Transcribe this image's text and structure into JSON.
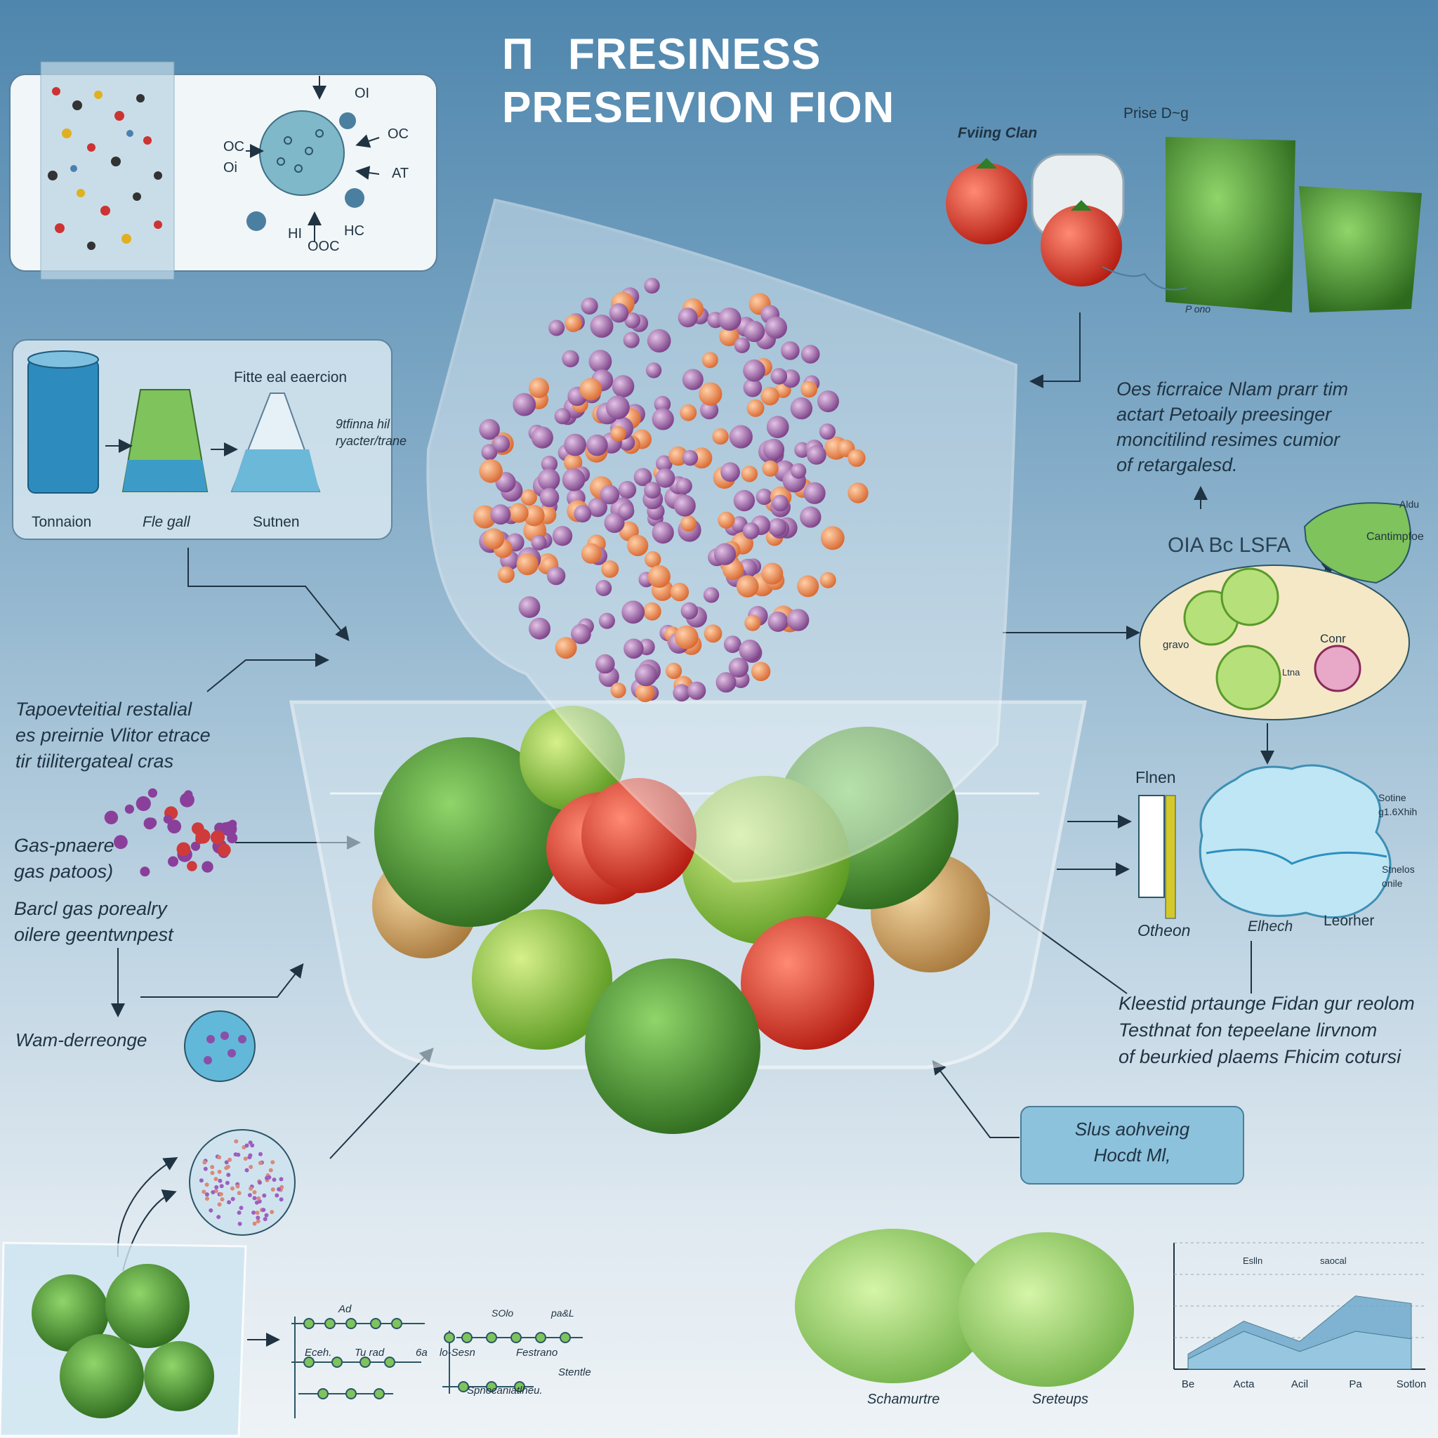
{
  "title": {
    "prefix": "Π",
    "line1": "FRESINESS",
    "line2": "PRESEIVION FION"
  },
  "membrane_panel": {
    "labels": [
      "OI",
      "OC",
      "OC",
      "Oi",
      "AT",
      "HI",
      "HC",
      "OOC"
    ]
  },
  "beaker_panel": {
    "heading": "Fitte eal eaercion",
    "note_lines": [
      "9tfinna hil",
      "ryacter/trane"
    ],
    "labels": [
      "Tonnaion",
      "Fle gall",
      "Sutnen"
    ]
  },
  "top_right": {
    "label_left": "Fviing Clan",
    "label_top": "Prise D~g",
    "label_small": "P ono"
  },
  "right_paragraph_1": [
    "Oes ficrraice Nlam prarr tim",
    "actart Petoaily preesinger",
    "moncitilind resimes cumior",
    "of retargalesd."
  ],
  "right_mid": {
    "code": "OIA Bc LSFA",
    "badge_top": "Aldu",
    "badge_text": "Cantimpfoe",
    "oval_left": "gravo",
    "oval_right": "Conr",
    "oval_small": "Ltna"
  },
  "right_flow": {
    "top": "Flnen",
    "side_top_lines": [
      "Sotine",
      "g1.6Xhih"
    ],
    "side_bot_lines": [
      "Stnelos",
      "onile"
    ],
    "bottom": [
      "Otheon",
      "Elhech",
      "Leorher"
    ]
  },
  "right_paragraph_2": [
    "Kleestid prtaunge Fidan gur reolom",
    "Testhnat fon tepeelane lirvnom",
    "of beurkied plaems Fhicim cotursi"
  ],
  "left_texts": {
    "para1": [
      "Tapoevteitial restalial",
      "es preirnie Vlitor etrace",
      "tir tiilitergateal cras"
    ],
    "gas1": [
      "Gas-pnaere",
      "gas patoos)"
    ],
    "gas2": [
      "Barcl gas porealry",
      "oilere geentwnpest"
    ],
    "warm": "Wam-derreonge"
  },
  "center_callout": [
    "Slus aohveing",
    "Hocdt Ml,"
  ],
  "bottom_network": {
    "labels": [
      "Ad",
      "SOlo",
      "pa&L",
      "Eceh.",
      "Tu rad",
      "6a",
      "lo-Sesn",
      "Festrano",
      "Stentle",
      "Spnocaniatlheu."
    ]
  },
  "lettuce_labels": [
    "Schamurtre",
    "Sreteups"
  ],
  "chart_data": {
    "type": "area",
    "categories": [
      "Be",
      "Acta",
      "Acil",
      "Pa",
      "Sotlon"
    ],
    "legend": [
      "Eslln",
      "saocal"
    ],
    "series": [
      {
        "name": "Eslln",
        "values": [
          12,
          38,
          22,
          58,
          52
        ]
      },
      {
        "name": "saocal",
        "values": [
          8,
          30,
          14,
          30,
          24
        ]
      }
    ],
    "ylim": [
      0,
      100
    ],
    "grid": true
  }
}
